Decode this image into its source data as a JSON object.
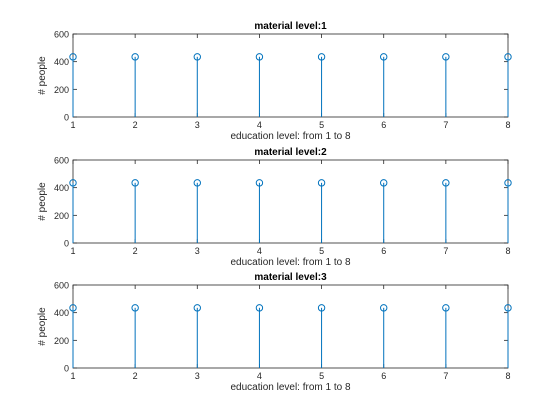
{
  "chart_data": [
    {
      "type": "stem",
      "title": "material level:1",
      "xlabel": "education level: from 1 to 8",
      "ylabel": "# people",
      "x": [
        1,
        2,
        3,
        4,
        5,
        6,
        7,
        8
      ],
      "values": [
        435,
        435,
        435,
        435,
        435,
        435,
        435,
        435
      ],
      "xlim": [
        1,
        8
      ],
      "ylim": [
        0,
        600
      ],
      "xticks": [
        "1",
        "2",
        "3",
        "4",
        "5",
        "6",
        "7",
        "8"
      ],
      "yticks": [
        "0",
        "200",
        "400",
        "600"
      ],
      "grid": false,
      "color": "#0072bd"
    },
    {
      "type": "stem",
      "title": "material level:2",
      "xlabel": "education level: from 1 to 8",
      "ylabel": "# people",
      "x": [
        1,
        2,
        3,
        4,
        5,
        6,
        7,
        8
      ],
      "values": [
        435,
        435,
        435,
        435,
        435,
        435,
        435,
        435
      ],
      "xlim": [
        1,
        8
      ],
      "ylim": [
        0,
        600
      ],
      "xticks": [
        "1",
        "2",
        "3",
        "4",
        "5",
        "6",
        "7",
        "8"
      ],
      "yticks": [
        "0",
        "200",
        "400",
        "600"
      ],
      "grid": false,
      "color": "#0072bd"
    },
    {
      "type": "stem",
      "title": "material level:3",
      "xlabel": "education level: from 1 to 8",
      "ylabel": "# people",
      "x": [
        1,
        2,
        3,
        4,
        5,
        6,
        7,
        8
      ],
      "values": [
        435,
        435,
        435,
        435,
        435,
        435,
        435,
        435
      ],
      "xlim": [
        1,
        8
      ],
      "ylim": [
        0,
        600
      ],
      "xticks": [
        "1",
        "2",
        "3",
        "4",
        "5",
        "6",
        "7",
        "8"
      ],
      "yticks": [
        "0",
        "200",
        "400",
        "600"
      ],
      "grid": false,
      "color": "#0072bd"
    }
  ]
}
